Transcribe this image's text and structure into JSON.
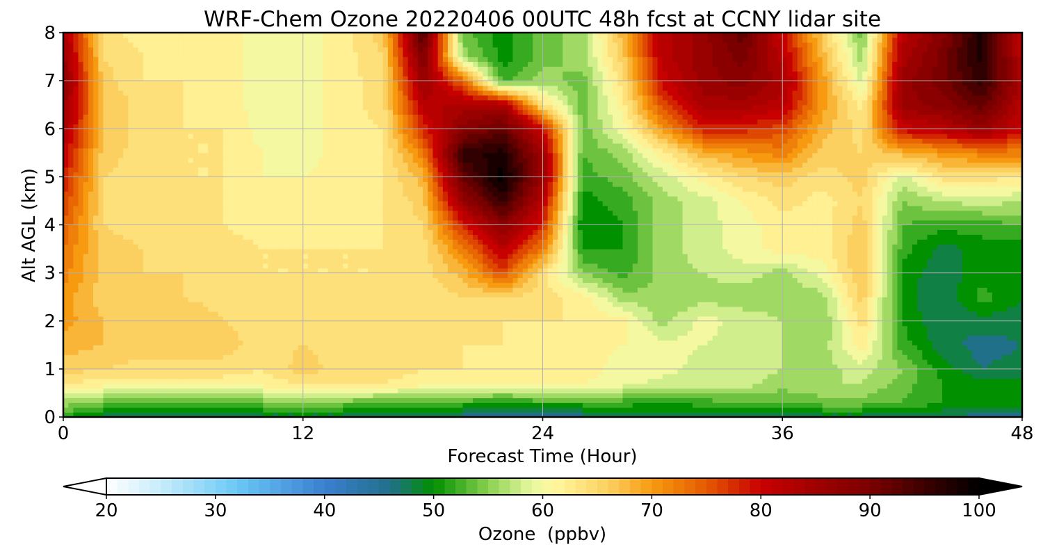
{
  "chart_data": {
    "type": "heatmap",
    "title": "WRF-Chem Ozone  20220406 00UTC 48h fcst at CCNY lidar site",
    "xlabel": "Forecast Time (Hour)",
    "ylabel": "Alt AGL (km)",
    "xlim": [
      0,
      48
    ],
    "ylim": [
      0,
      8
    ],
    "x_ticks": [
      "0",
      "12",
      "24",
      "36",
      "48"
    ],
    "y_ticks": [
      "0",
      "1",
      "2",
      "3",
      "4",
      "5",
      "6",
      "7",
      "8"
    ],
    "grid": true,
    "colorbar": {
      "label": "Ozone  (ppbv)",
      "min": 20,
      "max": 100,
      "ticks": [
        "20",
        "30",
        "40",
        "50",
        "60",
        "70",
        "80",
        "90",
        "100"
      ],
      "extend": "both",
      "colors": [
        {
          "v": 20,
          "c": "#ffffff"
        },
        {
          "v": 25,
          "c": "#c7ecfa"
        },
        {
          "v": 32,
          "c": "#6ac8f5"
        },
        {
          "v": 40,
          "c": "#3a7fd0"
        },
        {
          "v": 46,
          "c": "#20708a"
        },
        {
          "v": 50,
          "c": "#009000"
        },
        {
          "v": 55,
          "c": "#88d050"
        },
        {
          "v": 59,
          "c": "#e8f8a0"
        },
        {
          "v": 61,
          "c": "#fff8a0"
        },
        {
          "v": 66,
          "c": "#fbd060"
        },
        {
          "v": 70,
          "c": "#f79a10"
        },
        {
          "v": 75,
          "c": "#e45a00"
        },
        {
          "v": 80,
          "c": "#c80000"
        },
        {
          "v": 90,
          "c": "#7a0000"
        },
        {
          "v": 100,
          "c": "#000000"
        }
      ]
    },
    "x": [
      0,
      2,
      4,
      6,
      8,
      10,
      12,
      14,
      16,
      18,
      20,
      22,
      24,
      26,
      28,
      30,
      32,
      34,
      36,
      38,
      40,
      42,
      44,
      46,
      48
    ],
    "y": [
      0,
      0.3,
      0.7,
      1,
      1.5,
      2,
      2.5,
      3,
      3.5,
      4,
      4.5,
      5,
      5.5,
      6,
      6.5,
      7,
      7.5,
      8
    ],
    "z": [
      [
        51,
        48,
        48,
        48,
        48,
        48,
        48,
        48,
        47,
        47,
        46,
        44,
        44,
        46,
        47,
        47,
        47,
        47,
        48,
        48,
        48,
        48,
        47,
        46,
        46
      ],
      [
        56,
        54,
        53,
        53,
        53,
        54,
        54,
        54,
        53,
        53,
        52,
        51,
        52,
        52,
        52,
        51,
        52,
        53,
        53,
        54,
        54,
        53,
        51,
        50,
        50
      ],
      [
        63,
        62,
        62,
        62,
        62,
        62,
        63,
        64,
        63,
        62,
        62,
        61,
        62,
        61,
        60,
        58,
        58,
        58,
        56,
        57,
        57,
        54,
        51,
        50,
        50
      ],
      [
        66,
        65,
        64,
        64,
        64,
        63,
        66,
        64,
        64,
        63,
        63,
        62,
        62,
        62,
        60,
        60,
        58,
        58,
        57,
        56,
        58,
        55,
        50,
        47,
        48
      ],
      [
        68,
        67,
        66,
        66,
        66,
        64,
        65,
        64,
        64,
        64,
        63,
        63,
        62,
        62,
        61,
        60,
        59,
        58,
        57,
        56,
        62,
        52,
        48,
        46,
        47
      ],
      [
        70,
        67,
        66,
        67,
        65,
        64,
        64,
        64,
        64,
        64,
        64,
        63,
        63,
        63,
        62,
        56,
        60,
        58,
        57,
        55,
        64,
        51,
        47,
        48,
        48
      ],
      [
        70,
        66,
        65,
        65,
        64,
        64,
        64,
        64,
        63,
        63,
        65,
        65,
        64,
        62,
        56,
        55,
        56,
        56,
        56,
        56,
        66,
        50,
        47,
        52,
        49
      ],
      [
        72,
        66,
        65,
        65,
        64,
        63,
        63,
        63,
        63,
        64,
        68,
        76,
        64,
        55,
        52,
        56,
        57,
        58,
        56,
        60,
        67,
        50,
        48,
        50,
        49
      ],
      [
        73,
        66,
        65,
        64,
        64,
        63,
        63,
        63,
        63,
        64,
        72,
        82,
        72,
        51,
        51,
        56,
        58,
        60,
        62,
        62,
        67,
        52,
        48,
        50,
        50
      ],
      [
        75,
        65,
        64,
        64,
        63,
        62,
        62,
        62,
        63,
        65,
        78,
        88,
        78,
        49,
        51,
        56,
        58,
        60,
        62,
        62,
        66,
        53,
        52,
        52,
        53
      ],
      [
        77,
        65,
        64,
        64,
        63,
        62,
        61,
        62,
        63,
        66,
        86,
        96,
        82,
        50,
        52,
        56,
        58,
        61,
        64,
        62,
        65,
        55,
        57,
        58,
        57
      ],
      [
        79,
        65,
        64,
        63,
        63,
        61,
        61,
        62,
        63,
        68,
        92,
        100,
        86,
        52,
        54,
        58,
        62,
        65,
        66,
        64,
        66,
        58,
        64,
        64,
        63
      ],
      [
        81,
        66,
        64,
        63,
        63,
        61,
        60,
        62,
        63,
        72,
        96,
        98,
        85,
        53,
        56,
        62,
        68,
        70,
        72,
        66,
        65,
        68,
        70,
        72,
        72
      ],
      [
        84,
        67,
        64,
        63,
        63,
        60,
        60,
        62,
        63,
        78,
        88,
        92,
        80,
        54,
        60,
        70,
        78,
        78,
        76,
        68,
        64,
        80,
        82,
        86,
        80
      ],
      [
        86,
        67,
        64,
        63,
        62,
        60,
        60,
        62,
        64,
        82,
        84,
        84,
        64,
        54,
        62,
        76,
        84,
        84,
        82,
        70,
        62,
        86,
        88,
        92,
        82
      ],
      [
        88,
        66,
        63,
        63,
        62,
        60,
        60,
        62,
        64,
        86,
        74,
        52,
        56,
        54,
        64,
        80,
        86,
        88,
        84,
        70,
        58,
        86,
        90,
        96,
        84
      ],
      [
        86,
        65,
        63,
        62,
        62,
        60,
        60,
        62,
        65,
        90,
        56,
        50,
        54,
        56,
        66,
        82,
        86,
        90,
        82,
        68,
        56,
        84,
        90,
        98,
        82
      ],
      [
        84,
        64,
        62,
        62,
        62,
        60,
        60,
        62,
        66,
        94,
        54,
        50,
        54,
        56,
        68,
        82,
        86,
        92,
        80,
        66,
        54,
        82,
        88,
        98,
        80
      ]
    ]
  }
}
